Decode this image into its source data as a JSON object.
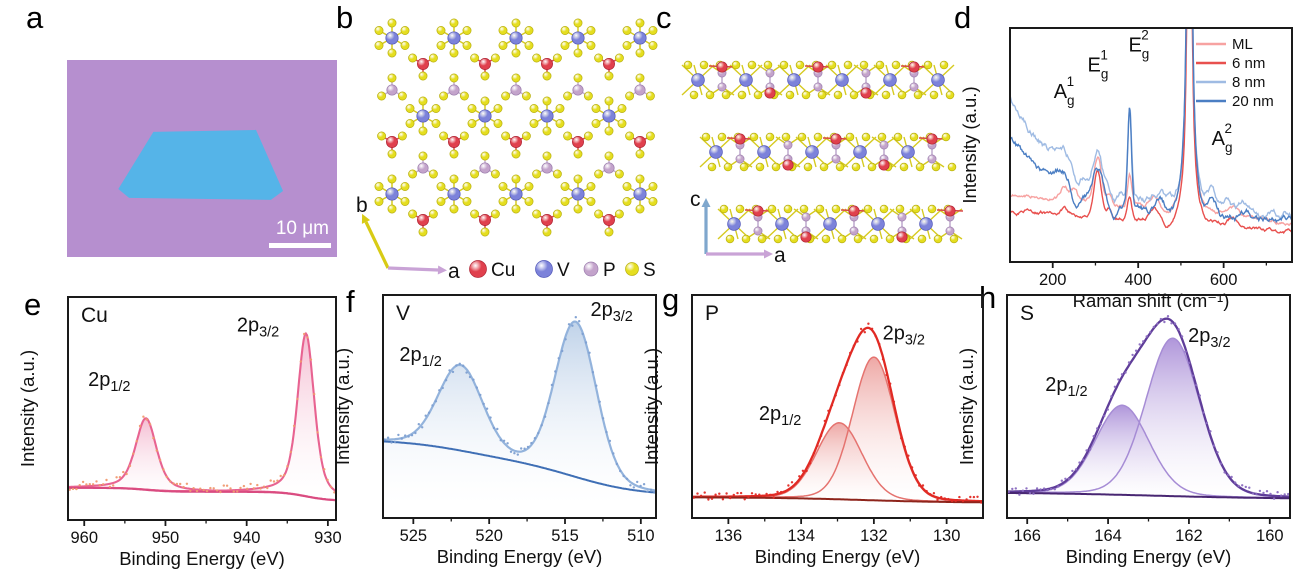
{
  "panels": {
    "a": {
      "letter": "a",
      "micrograph": {
        "background_color": "#b68fcf",
        "flake_color": "#55b4e8",
        "scale_bar_label": "10 μm"
      }
    },
    "b": {
      "letter": "b",
      "axes": {
        "x": {
          "label": "a",
          "color": "#c9a3d6"
        },
        "y": {
          "label": "b",
          "color": "#d8cb15"
        }
      },
      "atoms": [
        {
          "label": "Cu",
          "color": "#e0404d"
        },
        {
          "label": "V",
          "color": "#7c82da"
        },
        {
          "label": "P",
          "color": "#c3a3cb"
        },
        {
          "label": "S",
          "color": "#e5de1f"
        }
      ]
    },
    "c": {
      "letter": "c",
      "axes": {
        "x": {
          "label": "a",
          "color": "#c9a3d6"
        },
        "y": {
          "label": "c",
          "color": "#7fa7cd"
        }
      }
    },
    "d": {
      "letter": "d"
    },
    "e": {
      "letter": "e"
    },
    "f": {
      "letter": "f"
    },
    "g": {
      "letter": "g"
    },
    "h": {
      "letter": "h"
    }
  },
  "chart_data": [
    {
      "id": "raman",
      "type": "line",
      "xlabel": "Raman shift (cm⁻¹)",
      "ylabel": "Intensity (a.u.)",
      "xlim": [
        100,
        760
      ],
      "xticks": [
        200,
        400,
        600
      ],
      "xticks_minor": [
        300,
        500,
        700
      ],
      "grid": false,
      "legend_position": "top-right",
      "series": [
        {
          "name": "ML",
          "color": "#f7a2a1",
          "base": 0.29,
          "rise": 0.0,
          "slope": -0.12,
          "noise": 0.55,
          "peaks": [
            [
              228,
              9,
              0.055
            ],
            [
              250,
              7,
              0.04
            ],
            [
              305,
              9,
              0.2
            ],
            [
              332,
              6,
              0.05
            ],
            [
              380,
              5,
              0.13
            ],
            [
              438,
              10,
              0.05
            ],
            [
              468,
              12,
              -0.045
            ],
            [
              520,
              4.5,
              2.6
            ],
            [
              520,
              15,
              0.07
            ],
            [
              622,
              10,
              0.035
            ]
          ]
        },
        {
          "name": "6 nm",
          "color": "#e8504e",
          "base": 0.22,
          "rise": 0.0,
          "slope": -0.09,
          "noise": 0.55,
          "peaks": [
            [
              228,
              9,
              0.03
            ],
            [
              305,
              9,
              0.185
            ],
            [
              332,
              6,
              0.04
            ],
            [
              380,
              5,
              0.095
            ],
            [
              438,
              10,
              0.04
            ],
            [
              468,
              12,
              -0.04
            ],
            [
              520,
              4.5,
              2.5
            ],
            [
              520,
              15,
              0.06
            ],
            [
              622,
              10,
              0.035
            ]
          ]
        },
        {
          "name": "8 nm",
          "color": "#9fbbe3",
          "base": 0.2,
          "rise": 0.52,
          "slope": 0.0,
          "noise": 1.0,
          "peaks": [
            [
              225,
              16,
              0.09
            ],
            [
              255,
              8,
              -0.06
            ],
            [
              305,
              11,
              0.16
            ],
            [
              345,
              7,
              -0.05
            ],
            [
              380,
              4.5,
              0.4
            ],
            [
              450,
              10,
              0.05
            ],
            [
              520,
              4.5,
              3.0
            ],
            [
              520,
              15,
              0.08
            ],
            [
              572,
              11,
              0.08
            ],
            [
              610,
              9,
              0.03
            ],
            [
              655,
              12,
              0.03
            ]
          ]
        },
        {
          "name": "20 nm",
          "color": "#4b7ec3",
          "base": 0.17,
          "rise": 0.37,
          "slope": 0.0,
          "noise": 1.0,
          "peaks": [
            [
              225,
              16,
              0.07
            ],
            [
              255,
              8,
              -0.05
            ],
            [
              305,
              11,
              0.14
            ],
            [
              345,
              7,
              -0.04
            ],
            [
              380,
              4.5,
              0.42
            ],
            [
              450,
              10,
              0.04
            ],
            [
              520,
              4.5,
              3.0
            ],
            [
              520,
              15,
              0.08
            ],
            [
              572,
              11,
              0.06
            ],
            [
              655,
              12,
              0.03
            ]
          ]
        }
      ],
      "annotations": [
        {
          "base": "A",
          "sub": "g",
          "sup": "1",
          "fx": 0.155,
          "fy": 0.3
        },
        {
          "base": "E",
          "sub": "g",
          "sup": "1",
          "fx": 0.275,
          "fy": 0.185
        },
        {
          "base": "E",
          "sub": "g",
          "sup": "2",
          "fx": 0.42,
          "fy": 0.1
        },
        {
          "base": "A",
          "sub": "g",
          "sup": "2",
          "fx": 0.715,
          "fy": 0.5
        }
      ]
    },
    {
      "id": "cu",
      "type": "xps",
      "element": "Cu",
      "xlabel": "Binding Energy (eV)",
      "ylabel": "Intensity (a.u.)",
      "xlim": [
        962,
        929
      ],
      "xticks": [
        960,
        950,
        940,
        930
      ],
      "xticks_minor": [
        955,
        945,
        935
      ],
      "mode": "separate",
      "lorentz": 0.5,
      "colors": {
        "envelope": "#e86391",
        "component": "#e86391",
        "fill_top": "#f4b9cf",
        "baseline": "#d94b80",
        "dots": "#f09a70"
      },
      "baseline": {
        "start": 0.115,
        "end": 0.035,
        "step_width": 1.5
      },
      "peaks": [
        {
          "label": "2p",
          "sub": "1/2",
          "center": 952.4,
          "width": 1.25,
          "height": 0.44,
          "label_fx": 0.075,
          "label_fy": 0.4
        },
        {
          "label": "2p",
          "sub": "3/2",
          "center": 932.7,
          "width": 1.0,
          "height": 1.0,
          "label_fx": 0.63,
          "label_fy": 0.155
        }
      ]
    },
    {
      "id": "v",
      "type": "xps",
      "element": "V",
      "xlabel": "Binding Energy (eV)",
      "ylabel": "Intensity (a.u.)",
      "xlim": [
        527,
        509
      ],
      "xticks": [
        525,
        520,
        515,
        510
      ],
      "xticks_minor": [
        522.5,
        517.5,
        512.5
      ],
      "mode": "merged",
      "lorentz": 0.12,
      "colors": {
        "envelope": "#93b3dc",
        "fill_top": "#bcd0e8",
        "baseline": "#3f6fb5",
        "dots": "#7d9fd1"
      },
      "baseline": {
        "start": 0.4,
        "end": 0.055,
        "step_width": 2.2
      },
      "peaks": [
        {
          "label": "2p",
          "sub": "1/2",
          "center": 521.9,
          "width": 1.45,
          "height": 0.52,
          "label_fx": 0.06,
          "label_fy": 0.295
        },
        {
          "label": "2p",
          "sub": "3/2",
          "center": 514.3,
          "width": 1.35,
          "height": 0.95,
          "label_fx": 0.76,
          "label_fy": 0.095
        }
      ]
    },
    {
      "id": "p",
      "type": "xps",
      "element": "P",
      "xlabel": "Binding Energy (eV)",
      "ylabel": "Intensity (a.u.)",
      "xlim": [
        137,
        129
      ],
      "xticks": [
        136,
        134,
        132,
        130
      ],
      "xticks_minor": [
        135,
        133,
        131
      ],
      "mode": "separate-envelope",
      "lorentz": 0.1,
      "colors": {
        "envelope": "#e12a24",
        "component": "#e5736f",
        "fill_top": "#eda3a0",
        "baseline": "#8e241b",
        "dots": "#e12a24"
      },
      "baseline": {
        "start": 0.045,
        "end": 0.012,
        "step_width": 1.2
      },
      "peaks": [
        {
          "label": "2p",
          "sub": "1/2",
          "center": 132.95,
          "width": 0.62,
          "height": 0.47,
          "label_fx": 0.23,
          "label_fy": 0.56
        },
        {
          "label": "2p",
          "sub": "3/2",
          "center": 132.0,
          "width": 0.58,
          "height": 0.88,
          "label_fx": 0.655,
          "label_fy": 0.2
        }
      ]
    },
    {
      "id": "s",
      "type": "xps",
      "element": "S",
      "xlabel": "Binding Energy (eV)",
      "ylabel": "Intensity (a.u.)",
      "xlim": [
        166.5,
        159.5
      ],
      "xticks": [
        166,
        164,
        162,
        160
      ],
      "xticks_minor": [
        165,
        163,
        161
      ],
      "mode": "separate-envelope",
      "lorentz": 0.1,
      "colors": {
        "envelope": "#5f3d99",
        "component": "#a68cd5",
        "fill_top": "#ab90d8",
        "baseline": "#482672",
        "dots": "#8a6cc0"
      },
      "baseline": {
        "start": 0.075,
        "end": 0.035,
        "step_width": 1.5
      },
      "peaks": [
        {
          "label": "2p",
          "sub": "1/2",
          "center": 163.65,
          "width": 0.66,
          "height": 0.55,
          "label_fx": 0.135,
          "label_fy": 0.43
        },
        {
          "label": "2p",
          "sub": "3/2",
          "center": 162.4,
          "width": 0.66,
          "height": 0.97,
          "label_fx": 0.64,
          "label_fy": 0.21
        }
      ]
    }
  ]
}
